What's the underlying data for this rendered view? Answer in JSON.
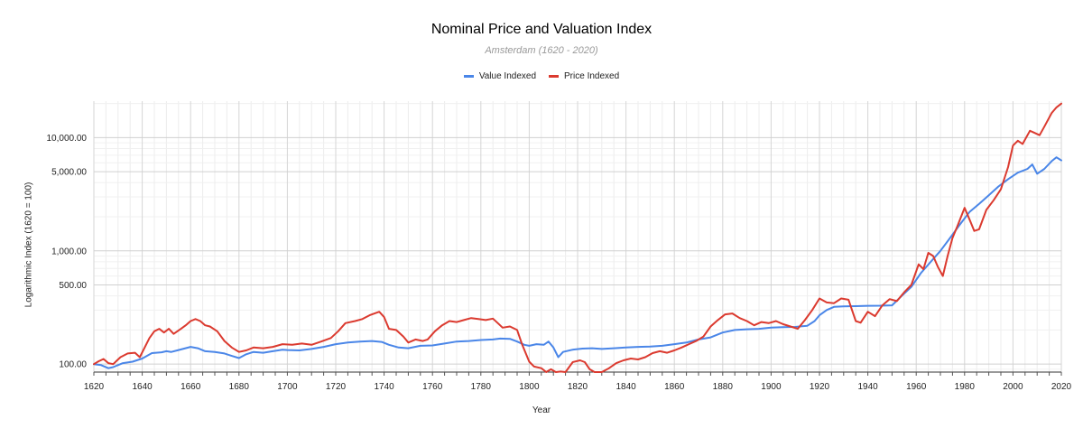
{
  "chart_data": {
    "type": "line",
    "title": "Nominal Price and Valuation Index",
    "subtitle": "Amsterdam (1620 - 2020)",
    "xlabel": "Year",
    "ylabel": "Logarithmic Index (1620 = 100)",
    "yscale": "log",
    "xlim": [
      1620,
      2020
    ],
    "ylim": [
      85,
      21000
    ],
    "x_ticks": [
      1620,
      1640,
      1660,
      1680,
      1700,
      1720,
      1740,
      1760,
      1780,
      1800,
      1820,
      1840,
      1860,
      1880,
      1900,
      1920,
      1940,
      1960,
      1980,
      2000,
      2020
    ],
    "y_ticks": [
      {
        "value": 100,
        "label": "100.00"
      },
      {
        "value": 500,
        "label": "500.00"
      },
      {
        "value": 1000,
        "label": "1,000.00"
      },
      {
        "value": 5000,
        "label": "5,000.00"
      },
      {
        "value": 10000,
        "label": "10,000.00"
      }
    ],
    "legend_position": "top",
    "series": [
      {
        "name": "Value Indexed",
        "color": "#4a86e8",
        "points": [
          [
            1620,
            100
          ],
          [
            1623,
            98
          ],
          [
            1626,
            92
          ],
          [
            1628,
            94
          ],
          [
            1632,
            102
          ],
          [
            1636,
            105
          ],
          [
            1640,
            112
          ],
          [
            1644,
            125
          ],
          [
            1648,
            127
          ],
          [
            1650,
            130
          ],
          [
            1652,
            128
          ],
          [
            1655,
            133
          ],
          [
            1660,
            142
          ],
          [
            1663,
            138
          ],
          [
            1666,
            130
          ],
          [
            1670,
            128
          ],
          [
            1674,
            124
          ],
          [
            1677,
            118
          ],
          [
            1680,
            113
          ],
          [
            1683,
            122
          ],
          [
            1686,
            128
          ],
          [
            1690,
            126
          ],
          [
            1694,
            130
          ],
          [
            1698,
            134
          ],
          [
            1700,
            133
          ],
          [
            1705,
            132
          ],
          [
            1710,
            136
          ],
          [
            1715,
            142
          ],
          [
            1720,
            150
          ],
          [
            1725,
            155
          ],
          [
            1730,
            158
          ],
          [
            1735,
            160
          ],
          [
            1739,
            157
          ],
          [
            1742,
            148
          ],
          [
            1746,
            140
          ],
          [
            1750,
            138
          ],
          [
            1755,
            145
          ],
          [
            1760,
            146
          ],
          [
            1765,
            152
          ],
          [
            1770,
            158
          ],
          [
            1775,
            160
          ],
          [
            1780,
            163
          ],
          [
            1785,
            165
          ],
          [
            1788,
            168
          ],
          [
            1792,
            167
          ],
          [
            1795,
            158
          ],
          [
            1798,
            148
          ],
          [
            1800,
            145
          ],
          [
            1803,
            150
          ],
          [
            1806,
            148
          ],
          [
            1808,
            158
          ],
          [
            1810,
            140
          ],
          [
            1812,
            115
          ],
          [
            1814,
            128
          ],
          [
            1818,
            134
          ],
          [
            1822,
            137
          ],
          [
            1826,
            138
          ],
          [
            1830,
            136
          ],
          [
            1835,
            138
          ],
          [
            1840,
            140
          ],
          [
            1845,
            142
          ],
          [
            1850,
            143
          ],
          [
            1855,
            145
          ],
          [
            1860,
            150
          ],
          [
            1865,
            155
          ],
          [
            1870,
            165
          ],
          [
            1875,
            172
          ],
          [
            1880,
            190
          ],
          [
            1885,
            200
          ],
          [
            1890,
            203
          ],
          [
            1895,
            205
          ],
          [
            1900,
            210
          ],
          [
            1905,
            212
          ],
          [
            1910,
            213
          ],
          [
            1915,
            218
          ],
          [
            1918,
            240
          ],
          [
            1920,
            270
          ],
          [
            1923,
            300
          ],
          [
            1926,
            320
          ],
          [
            1930,
            323
          ],
          [
            1935,
            325
          ],
          [
            1940,
            327
          ],
          [
            1945,
            328
          ],
          [
            1950,
            330
          ],
          [
            1954,
            400
          ],
          [
            1958,
            480
          ],
          [
            1962,
            640
          ],
          [
            1966,
            800
          ],
          [
            1970,
            1000
          ],
          [
            1974,
            1300
          ],
          [
            1978,
            1700
          ],
          [
            1982,
            2200
          ],
          [
            1986,
            2600
          ],
          [
            1990,
            3100
          ],
          [
            1994,
            3700
          ],
          [
            1998,
            4300
          ],
          [
            2002,
            4900
          ],
          [
            2006,
            5300
          ],
          [
            2008,
            5800
          ],
          [
            2010,
            4800
          ],
          [
            2013,
            5300
          ],
          [
            2016,
            6200
          ],
          [
            2018,
            6700
          ],
          [
            2020,
            6300
          ]
        ]
      },
      {
        "name": "Price Indexed",
        "color": "#db3a2f",
        "points": [
          [
            1620,
            100
          ],
          [
            1622,
            106
          ],
          [
            1624,
            111
          ],
          [
            1626,
            102
          ],
          [
            1628,
            100
          ],
          [
            1631,
            115
          ],
          [
            1634,
            124
          ],
          [
            1637,
            126
          ],
          [
            1639,
            115
          ],
          [
            1641,
            140
          ],
          [
            1643,
            170
          ],
          [
            1645,
            195
          ],
          [
            1647,
            205
          ],
          [
            1649,
            190
          ],
          [
            1651,
            205
          ],
          [
            1653,
            185
          ],
          [
            1656,
            205
          ],
          [
            1658,
            220
          ],
          [
            1660,
            240
          ],
          [
            1662,
            250
          ],
          [
            1664,
            240
          ],
          [
            1666,
            220
          ],
          [
            1668,
            215
          ],
          [
            1671,
            195
          ],
          [
            1674,
            160
          ],
          [
            1677,
            140
          ],
          [
            1680,
            128
          ],
          [
            1683,
            132
          ],
          [
            1686,
            140
          ],
          [
            1690,
            138
          ],
          [
            1694,
            142
          ],
          [
            1698,
            150
          ],
          [
            1702,
            148
          ],
          [
            1706,
            152
          ],
          [
            1710,
            148
          ],
          [
            1714,
            158
          ],
          [
            1718,
            170
          ],
          [
            1721,
            195
          ],
          [
            1724,
            230
          ],
          [
            1728,
            240
          ],
          [
            1731,
            250
          ],
          [
            1734,
            270
          ],
          [
            1738,
            290
          ],
          [
            1740,
            260
          ],
          [
            1742,
            205
          ],
          [
            1745,
            200
          ],
          [
            1748,
            175
          ],
          [
            1750,
            155
          ],
          [
            1753,
            165
          ],
          [
            1756,
            160
          ],
          [
            1758,
            165
          ],
          [
            1761,
            195
          ],
          [
            1764,
            220
          ],
          [
            1767,
            240
          ],
          [
            1770,
            235
          ],
          [
            1773,
            245
          ],
          [
            1776,
            255
          ],
          [
            1779,
            250
          ],
          [
            1782,
            245
          ],
          [
            1785,
            252
          ],
          [
            1787,
            230
          ],
          [
            1789,
            210
          ],
          [
            1792,
            215
          ],
          [
            1795,
            200
          ],
          [
            1797,
            150
          ],
          [
            1800,
            105
          ],
          [
            1802,
            95
          ],
          [
            1805,
            92
          ],
          [
            1807,
            84
          ],
          [
            1809,
            90
          ],
          [
            1811,
            80
          ],
          [
            1813,
            86
          ],
          [
            1815,
            83
          ],
          [
            1818,
            104
          ],
          [
            1821,
            108
          ],
          [
            1823,
            104
          ],
          [
            1825,
            90
          ],
          [
            1827,
            82
          ],
          [
            1830,
            85
          ],
          [
            1833,
            92
          ],
          [
            1836,
            102
          ],
          [
            1839,
            108
          ],
          [
            1842,
            112
          ],
          [
            1845,
            110
          ],
          [
            1848,
            115
          ],
          [
            1851,
            125
          ],
          [
            1854,
            130
          ],
          [
            1857,
            126
          ],
          [
            1860,
            132
          ],
          [
            1863,
            140
          ],
          [
            1866,
            150
          ],
          [
            1869,
            160
          ],
          [
            1872,
            175
          ],
          [
            1875,
            215
          ],
          [
            1878,
            245
          ],
          [
            1881,
            275
          ],
          [
            1884,
            280
          ],
          [
            1887,
            255
          ],
          [
            1890,
            240
          ],
          [
            1893,
            220
          ],
          [
            1896,
            235
          ],
          [
            1899,
            230
          ],
          [
            1902,
            240
          ],
          [
            1905,
            225
          ],
          [
            1908,
            215
          ],
          [
            1911,
            205
          ],
          [
            1914,
            245
          ],
          [
            1917,
            300
          ],
          [
            1920,
            380
          ],
          [
            1923,
            350
          ],
          [
            1926,
            345
          ],
          [
            1929,
            380
          ],
          [
            1932,
            370
          ],
          [
            1935,
            240
          ],
          [
            1937,
            232
          ],
          [
            1940,
            290
          ],
          [
            1943,
            265
          ],
          [
            1946,
            330
          ],
          [
            1949,
            375
          ],
          [
            1952,
            360
          ],
          [
            1955,
            430
          ],
          [
            1958,
            500
          ],
          [
            1961,
            760
          ],
          [
            1963,
            690
          ],
          [
            1965,
            960
          ],
          [
            1967,
            900
          ],
          [
            1969,
            720
          ],
          [
            1971,
            600
          ],
          [
            1973,
            900
          ],
          [
            1975,
            1300
          ],
          [
            1977,
            1650
          ],
          [
            1980,
            2400
          ],
          [
            1982,
            1900
          ],
          [
            1984,
            1500
          ],
          [
            1986,
            1550
          ],
          [
            1989,
            2300
          ],
          [
            1992,
            2800
          ],
          [
            1995,
            3500
          ],
          [
            1998,
            5500
          ],
          [
            2000,
            8500
          ],
          [
            2002,
            9400
          ],
          [
            2004,
            8800
          ],
          [
            2007,
            11500
          ],
          [
            2009,
            11000
          ],
          [
            2011,
            10500
          ],
          [
            2013,
            12500
          ],
          [
            2016,
            16500
          ],
          [
            2018,
            18500
          ],
          [
            2020,
            20000
          ]
        ]
      }
    ]
  }
}
